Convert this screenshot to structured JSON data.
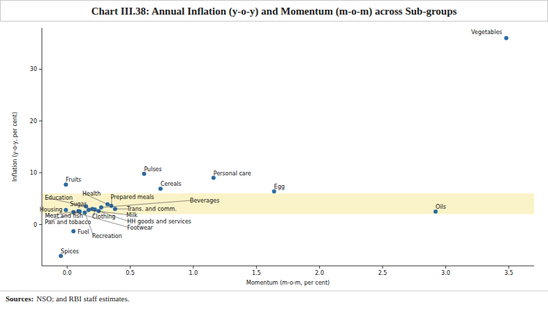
{
  "chart_data": {
    "type": "scatter",
    "title": "Chart III.38: Annual Inflation (y-o-y) and Momentum (m-o-m) across Sub-groups",
    "x_label": "Momentum (m-o-m, per cent)",
    "y_label": "Inflation (y-o-y, per cent)",
    "source_label": "Sources:",
    "source": "NSO; and RBI staff estimates.",
    "labels": [
      "Vegetables",
      "Pulses",
      "Personal care",
      "Cereals",
      "Egg",
      "Oils",
      "Fruits",
      "Spices",
      "Fuel",
      "Housing",
      "Education",
      "Health",
      "Prepared meals",
      "Sugar",
      "Beverages",
      "Trans. and comm.",
      "Clothing",
      "Milk",
      "HH goods and services",
      "Meat and fish",
      "Footwear",
      "Pan and tobacco",
      "Recreation"
    ],
    "x": [
      3.48,
      0.61,
      1.16,
      0.74,
      1.64,
      2.92,
      -0.01,
      -0.05,
      0.05,
      -0.01,
      0.15,
      0.32,
      0.35,
      0.2,
      0.27,
      0.38,
      0.22,
      0.17,
      0.25,
      0.09,
      0.05,
      0.1,
      0.14
    ],
    "values": [
      36,
      9.8,
      9.0,
      6.9,
      6.4,
      2.5,
      7.7,
      -6.1,
      -1.3,
      2.8,
      3.5,
      3.9,
      3.6,
      3.0,
      3.3,
      3.0,
      2.9,
      2.8,
      2.6,
      2.6,
      2.4,
      2.5,
      2.3
    ],
    "color": "#2c6ba3",
    "marker": "circle",
    "band": [
      2,
      6
    ],
    "band_color": "#fbf3c8",
    "xlim": [
      -0.2,
      3.7
    ],
    "xticks": [
      {
        "value": 0,
        "label": "0.0"
      },
      0.5,
      {
        "value": 1,
        "label": "1.0"
      },
      1.5,
      {
        "value": 2,
        "label": "2.0"
      },
      2.5,
      {
        "value": 3,
        "label": "3.0"
      },
      3.5
    ],
    "ylim": [
      -8,
      38
    ],
    "yticks": [
      0,
      10,
      20,
      30
    ],
    "grid": false
  }
}
